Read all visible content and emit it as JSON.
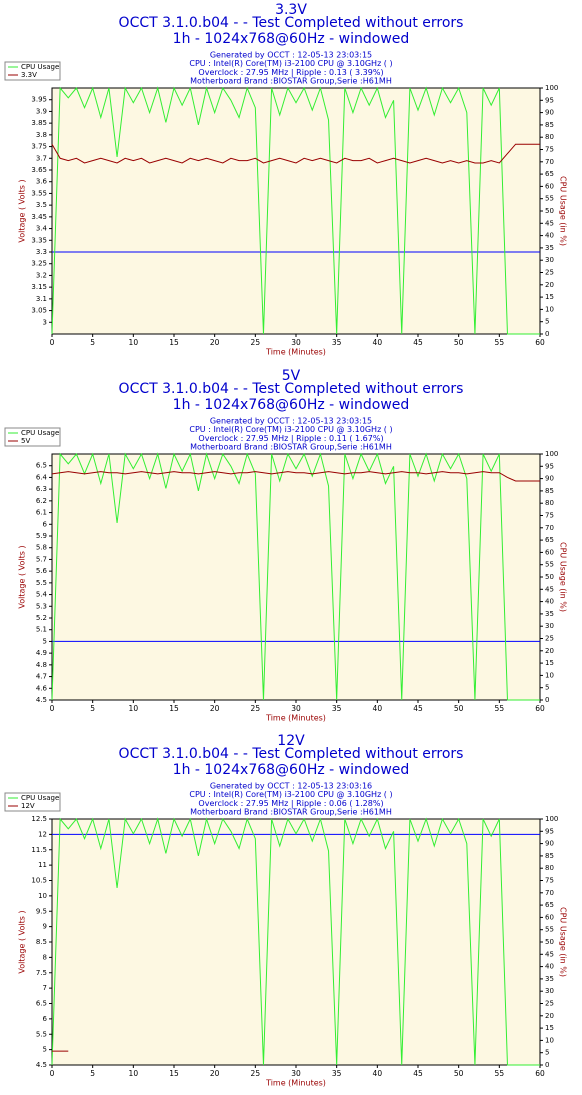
{
  "chart_data": [
    {
      "type": "line",
      "title": "3.3V",
      "subtitle": [
        "OCCT 3.1.0.b04 -  - Test Completed without errors",
        "1h - 1024x768@60Hz - windowed"
      ],
      "info": [
        "Generated by OCCT : 12-05-13 23:03:15",
        "CPU : Intel(R) Core(TM) i3-2100 CPU @ 3.10GHz (  )",
        "Overclock : 27.95 MHz | Ripple : 0.13 ( 3.39%)",
        "Motherboard Brand :BIOSTAR Group,Serie :H61MH"
      ],
      "xlabel": "Time (Minutes)",
      "ylabel": "Voltage ( Volts )",
      "y2label": "CPU Usage (in %)",
      "xlim": [
        0,
        60
      ],
      "xticks": [
        0,
        5,
        10,
        15,
        20,
        25,
        30,
        35,
        40,
        45,
        50,
        55,
        60
      ],
      "ylim": [
        2.95,
        4.0
      ],
      "yticks": [
        3,
        3.05,
        3.1,
        3.15,
        3.2,
        3.25,
        3.3,
        3.35,
        3.4,
        3.45,
        3.5,
        3.55,
        3.6,
        3.65,
        3.7,
        3.75,
        3.8,
        3.85,
        3.9,
        3.95
      ],
      "y2lim": [
        0,
        100
      ],
      "y2ticks": [
        0,
        5,
        10,
        15,
        20,
        25,
        30,
        35,
        40,
        45,
        50,
        55,
        60,
        65,
        70,
        75,
        80,
        85,
        90,
        95,
        100
      ],
      "hline": {
        "value": 3.3,
        "color": "#0000ff"
      },
      "x": [
        0,
        1,
        2,
        3,
        4,
        5,
        6,
        7,
        8,
        9,
        10,
        11,
        12,
        13,
        14,
        15,
        16,
        17,
        18,
        19,
        20,
        21,
        22,
        23,
        24,
        25,
        26,
        27,
        28,
        29,
        30,
        31,
        32,
        33,
        34,
        35,
        36,
        37,
        38,
        39,
        40,
        41,
        42,
        43,
        44,
        45,
        46,
        47,
        48,
        49,
        50,
        51,
        52,
        53,
        54,
        55,
        56,
        57,
        58,
        59,
        60
      ],
      "series": [
        {
          "name": "CPU Usage",
          "color": "#33ee33",
          "axis": "y2",
          "values": [
            0,
            100,
            96,
            100,
            92,
            100,
            88,
            100,
            72,
            100,
            94,
            100,
            90,
            100,
            86,
            100,
            93,
            100,
            85,
            100,
            90,
            100,
            95,
            88,
            100,
            92,
            0,
            100,
            89,
            100,
            94,
            100,
            91,
            100,
            87,
            0,
            100,
            90,
            100,
            93,
            100,
            88,
            95,
            0,
            100,
            91,
            100,
            89,
            100,
            94,
            100,
            90,
            0,
            100,
            93,
            100,
            0,
            0,
            0,
            0,
            0
          ]
        },
        {
          "name": "3.3V",
          "color": "#990000",
          "values": [
            3.76,
            3.7,
            3.69,
            3.7,
            3.68,
            3.69,
            3.7,
            3.69,
            3.68,
            3.7,
            3.69,
            3.7,
            3.68,
            3.69,
            3.7,
            3.69,
            3.68,
            3.7,
            3.69,
            3.7,
            3.69,
            3.68,
            3.7,
            3.69,
            3.69,
            3.7,
            3.68,
            3.69,
            3.7,
            3.69,
            3.68,
            3.7,
            3.69,
            3.7,
            3.69,
            3.68,
            3.7,
            3.69,
            3.69,
            3.7,
            3.68,
            3.69,
            3.7,
            3.69,
            3.68,
            3.69,
            3.7,
            3.69,
            3.68,
            3.69,
            3.68,
            3.69,
            3.68,
            3.68,
            3.69,
            3.68,
            3.72,
            3.76,
            3.76,
            3.76,
            3.76
          ]
        }
      ]
    },
    {
      "type": "line",
      "title": "5V",
      "subtitle": [
        "OCCT 3.1.0.b04 -  - Test Completed without errors",
        "1h - 1024x768@60Hz - windowed"
      ],
      "info": [
        "Generated by OCCT : 12-05-13 23:03:15",
        "CPU : Intel(R) Core(TM) i3-2100 CPU @ 3.10GHz (  )",
        "Overclock : 27.95 MHz | Ripple : 0.11 ( 1.67%)",
        "Motherboard Brand :BIOSTAR Group,Serie :H61MH"
      ],
      "xlabel": "Time (Minutes)",
      "ylabel": "Voltage ( Volts )",
      "y2label": "CPU Usage (in %)",
      "xlim": [
        0,
        60
      ],
      "xticks": [
        0,
        5,
        10,
        15,
        20,
        25,
        30,
        35,
        40,
        45,
        50,
        55,
        60
      ],
      "ylim": [
        4.5,
        6.6
      ],
      "yticks": [
        4.5,
        4.6,
        4.7,
        4.8,
        4.9,
        5,
        5.1,
        5.2,
        5.3,
        5.4,
        5.5,
        5.6,
        5.7,
        5.8,
        5.9,
        6,
        6.1,
        6.2,
        6.3,
        6.4,
        6.5
      ],
      "y2lim": [
        0,
        100
      ],
      "y2ticks": [
        0,
        5,
        10,
        15,
        20,
        25,
        30,
        35,
        40,
        45,
        50,
        55,
        60,
        65,
        70,
        75,
        80,
        85,
        90,
        95,
        100
      ],
      "hline": {
        "value": 5,
        "color": "#0000ff"
      },
      "x": [
        0,
        1,
        2,
        3,
        4,
        5,
        6,
        7,
        8,
        9,
        10,
        11,
        12,
        13,
        14,
        15,
        16,
        17,
        18,
        19,
        20,
        21,
        22,
        23,
        24,
        25,
        26,
        27,
        28,
        29,
        30,
        31,
        32,
        33,
        34,
        35,
        36,
        37,
        38,
        39,
        40,
        41,
        42,
        43,
        44,
        45,
        46,
        47,
        48,
        49,
        50,
        51,
        52,
        53,
        54,
        55,
        56,
        57,
        58,
        59,
        60
      ],
      "series": [
        {
          "name": "CPU Usage",
          "color": "#33ee33",
          "axis": "y2",
          "values": [
            0,
            100,
            96,
            100,
            92,
            100,
            88,
            100,
            72,
            100,
            94,
            100,
            90,
            100,
            86,
            100,
            93,
            100,
            85,
            100,
            90,
            100,
            95,
            88,
            100,
            92,
            0,
            100,
            89,
            100,
            94,
            100,
            91,
            100,
            87,
            0,
            100,
            90,
            100,
            93,
            100,
            88,
            95,
            0,
            100,
            91,
            100,
            89,
            100,
            94,
            100,
            90,
            0,
            100,
            93,
            100,
            0,
            0,
            0,
            0,
            0
          ]
        },
        {
          "name": "5V",
          "color": "#990000",
          "values": [
            6.43,
            6.44,
            6.45,
            6.44,
            6.43,
            6.44,
            6.45,
            6.44,
            6.44,
            6.43,
            6.44,
            6.45,
            6.44,
            6.43,
            6.44,
            6.45,
            6.44,
            6.44,
            6.43,
            6.44,
            6.45,
            6.44,
            6.43,
            6.44,
            6.44,
            6.45,
            6.44,
            6.43,
            6.44,
            6.45,
            6.44,
            6.44,
            6.43,
            6.44,
            6.45,
            6.44,
            6.43,
            6.44,
            6.44,
            6.45,
            6.44,
            6.43,
            6.44,
            6.45,
            6.44,
            6.44,
            6.43,
            6.44,
            6.45,
            6.44,
            6.44,
            6.43,
            6.44,
            6.45,
            6.44,
            6.44,
            6.4,
            6.37,
            6.37,
            6.37,
            6.37
          ]
        }
      ]
    },
    {
      "type": "line",
      "title": "12V",
      "subtitle": [
        "OCCT 3.1.0.b04 -  - Test Completed without errors",
        "1h - 1024x768@60Hz - windowed"
      ],
      "info": [
        "Generated by OCCT : 12-05-13 23:03:16",
        "CPU : Intel(R) Core(TM) i3-2100 CPU @ 3.10GHz (  )",
        "Overclock : 27.95 MHz | Ripple : 0.06 ( 1.28%)",
        "Motherboard Brand :BIOSTAR Group,Serie :H61MH"
      ],
      "xlabel": "Time (Minutes)",
      "ylabel": "Voltage ( Volts )",
      "y2label": "CPU Usage (in %)",
      "xlim": [
        0,
        60
      ],
      "xticks": [
        0,
        5,
        10,
        15,
        20,
        25,
        30,
        35,
        40,
        45,
        50,
        55,
        60
      ],
      "ylim": [
        4.5,
        12.5
      ],
      "yticks": [
        4.5,
        5,
        5.5,
        6,
        6.5,
        7,
        7.5,
        8,
        8.5,
        9,
        9.5,
        10,
        10.5,
        11,
        11.5,
        12,
        12.5
      ],
      "y2lim": [
        0,
        100
      ],
      "y2ticks": [
        0,
        5,
        10,
        15,
        20,
        25,
        30,
        35,
        40,
        45,
        50,
        55,
        60,
        65,
        70,
        75,
        80,
        85,
        90,
        95,
        100
      ],
      "hline": {
        "value": 12,
        "color": "#0000ff"
      },
      "x": [
        0,
        1,
        2,
        3,
        4,
        5,
        6,
        7,
        8,
        9,
        10,
        11,
        12,
        13,
        14,
        15,
        16,
        17,
        18,
        19,
        20,
        21,
        22,
        23,
        24,
        25,
        26,
        27,
        28,
        29,
        30,
        31,
        32,
        33,
        34,
        35,
        36,
        37,
        38,
        39,
        40,
        41,
        42,
        43,
        44,
        45,
        46,
        47,
        48,
        49,
        50,
        51,
        52,
        53,
        54,
        55,
        56,
        57,
        58,
        59,
        60
      ],
      "series": [
        {
          "name": "CPU Usage",
          "color": "#33ee33",
          "axis": "y2",
          "values": [
            0,
            100,
            96,
            100,
            92,
            100,
            88,
            100,
            72,
            100,
            94,
            100,
            90,
            100,
            86,
            100,
            93,
            100,
            85,
            100,
            90,
            100,
            95,
            88,
            100,
            92,
            0,
            100,
            89,
            100,
            94,
            100,
            91,
            100,
            87,
            0,
            100,
            90,
            100,
            93,
            100,
            88,
            95,
            0,
            100,
            91,
            100,
            89,
            100,
            94,
            100,
            90,
            0,
            100,
            93,
            100,
            0,
            0,
            0,
            0,
            0
          ]
        },
        {
          "name": "12V",
          "color": "#990000",
          "values": [
            4.95,
            4.95,
            4.95,
            null,
            null,
            null,
            null,
            null,
            null,
            null,
            null,
            null,
            null,
            null,
            null,
            null,
            null,
            null,
            null,
            null,
            null,
            null,
            null,
            null,
            null,
            null,
            null,
            null,
            null,
            null,
            null,
            null,
            null,
            null,
            null,
            null,
            null,
            null,
            null,
            null,
            null,
            null,
            null,
            null,
            null,
            null,
            null,
            null,
            null,
            null,
            null,
            null,
            null,
            null,
            null,
            null,
            null,
            null,
            null,
            null,
            null
          ]
        }
      ]
    }
  ]
}
